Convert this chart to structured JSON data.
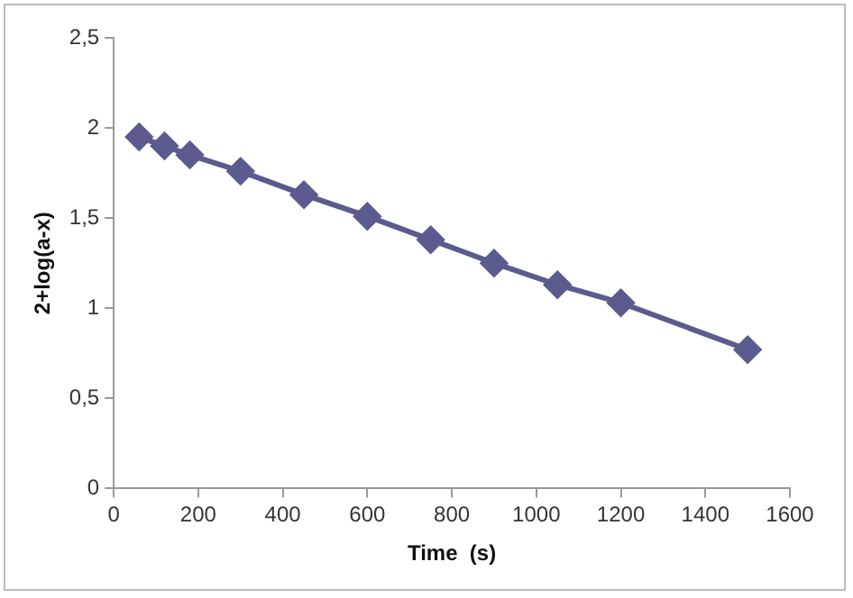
{
  "chart_data": {
    "type": "line",
    "xlabel": "Time  (s)",
    "ylabel": "2+log(a-x)",
    "x": [
      60,
      120,
      180,
      300,
      450,
      600,
      750,
      900,
      1050,
      1200,
      1500
    ],
    "series": [
      {
        "color": "#5b5b8f",
        "values": [
          1.95,
          1.9,
          1.85,
          1.76,
          1.63,
          1.51,
          1.38,
          1.25,
          1.13,
          1.03,
          0.77
        ]
      }
    ],
    "xlim": [
      0,
      1600
    ],
    "xticks": [
      0,
      200,
      400,
      600,
      800,
      1000,
      1200,
      1400,
      1600
    ],
    "ylim": [
      0,
      2.5
    ],
    "yticks": [
      {
        "value": 0,
        "label": "0"
      },
      {
        "value": 0.5,
        "label": "0,5"
      },
      {
        "value": 1,
        "label": "1"
      },
      {
        "value": 1.5,
        "label": "1,5"
      },
      {
        "value": 2,
        "label": "2"
      },
      {
        "value": 2.5,
        "label": "2,5"
      }
    ],
    "grid": false,
    "legend": false,
    "marker": "diamond",
    "line_style": "solid"
  }
}
